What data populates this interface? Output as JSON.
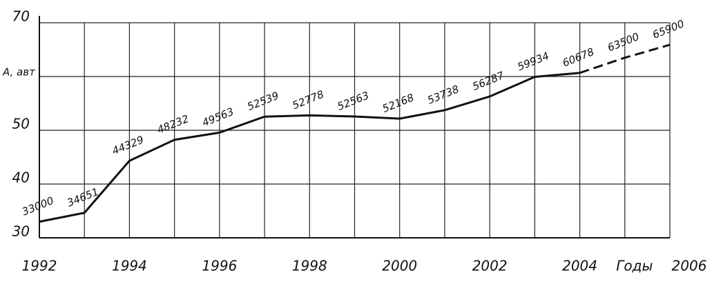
{
  "chart_data": {
    "type": "line",
    "x": [
      1992,
      1993,
      1994,
      1995,
      1996,
      1997,
      1998,
      1999,
      2000,
      2001,
      2002,
      2003,
      2004,
      2005,
      2006
    ],
    "values": [
      33.0,
      34.651,
      44.329,
      48.232,
      49.563,
      52.539,
      52.778,
      52.563,
      52.168,
      53.738,
      56.287,
      59.934,
      60.678,
      63.5,
      65.9
    ],
    "value_labels": [
      "33000",
      "34651",
      "44329",
      "48232",
      "49563",
      "52539",
      "52778",
      "52563",
      "52168",
      "53738",
      "56287",
      "59934",
      "60678",
      "63500",
      "65900"
    ],
    "color": "#111111",
    "dashed_from_x": 2004,
    "xlim": [
      1992,
      2006
    ],
    "xticks": [
      1992,
      1994,
      1996,
      1998,
      2000,
      2002,
      2004,
      2006
    ],
    "x_label": "Годы",
    "ylim": [
      30,
      70
    ],
    "yticks": [
      30,
      40,
      50,
      {
        "value": 60,
        "label": "A, авт"
      },
      70
    ],
    "grid": true
  }
}
